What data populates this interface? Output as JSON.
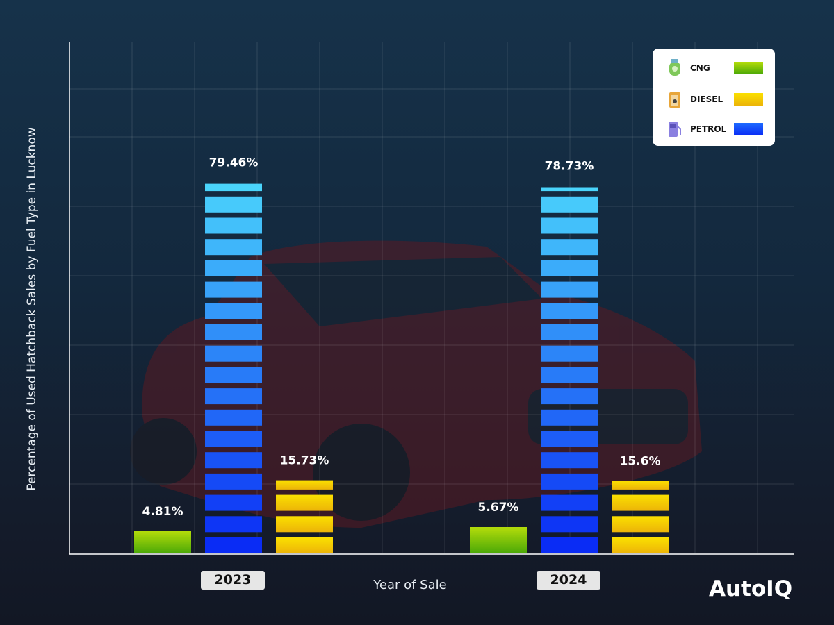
{
  "chart_data": {
    "type": "bar",
    "categories": [
      "2023",
      "2024"
    ],
    "series": [
      {
        "name": "CNG",
        "values": [
          4.81,
          5.67
        ],
        "labels": [
          "4.81%",
          "5.67%"
        ]
      },
      {
        "name": "PETROL",
        "values": [
          79.46,
          78.73
        ],
        "labels": [
          "79.46%",
          "78.73%"
        ]
      },
      {
        "name": "DIESEL",
        "values": [
          15.73,
          15.6
        ],
        "labels": [
          "15.73%",
          "15.6%"
        ]
      }
    ],
    "xlabel": "Year of Sale",
    "ylabel": "Percentage of Used Hatchback Sales by Fuel Type in Lucknow",
    "ylim": [
      0,
      110
    ],
    "grid": true,
    "legend_position": "top-right",
    "colors": {
      "CNG": [
        "#b4dc0a",
        "#4aa808"
      ],
      "DIESEL": [
        "#fbe000",
        "#ecb408"
      ],
      "PETROL_bottom": "#0a2cf5",
      "PETROL_top": "#55effc"
    }
  },
  "legend": {
    "items": [
      {
        "label": "CNG",
        "icon": "gas-cylinder-icon"
      },
      {
        "label": "DIESEL",
        "icon": "jerry-can-icon"
      },
      {
        "label": "PETROL",
        "icon": "fuel-pump-icon"
      }
    ]
  },
  "brand": "AutoIQ"
}
